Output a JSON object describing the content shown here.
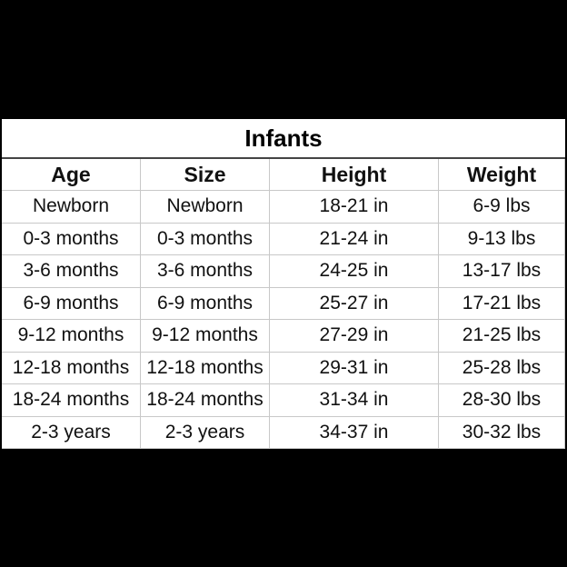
{
  "title": "Infants",
  "table": {
    "headers": [
      "Age",
      "Size",
      "Height",
      "Weight"
    ],
    "rows": [
      [
        "Newborn",
        "Newborn",
        "18-21 in",
        "6-9 lbs"
      ],
      [
        "0-3 months",
        "0-3 months",
        "21-24 in",
        "9-13 lbs"
      ],
      [
        "3-6 months",
        "3-6 months",
        "24-25 in",
        "13-17 lbs"
      ],
      [
        "6-9 months",
        "6-9 months",
        "25-27 in",
        "17-21 lbs"
      ],
      [
        "9-12 months",
        "9-12 months",
        "27-29 in",
        "21-25 lbs"
      ],
      [
        "12-18 months",
        "12-18 months",
        "29-31 in",
        "25-28 lbs"
      ],
      [
        "18-24 months",
        "18-24 months",
        "31-34 in",
        "28-30 lbs"
      ],
      [
        "2-3 years",
        "2-3 years",
        "34-37 in",
        "30-32 lbs"
      ]
    ]
  }
}
